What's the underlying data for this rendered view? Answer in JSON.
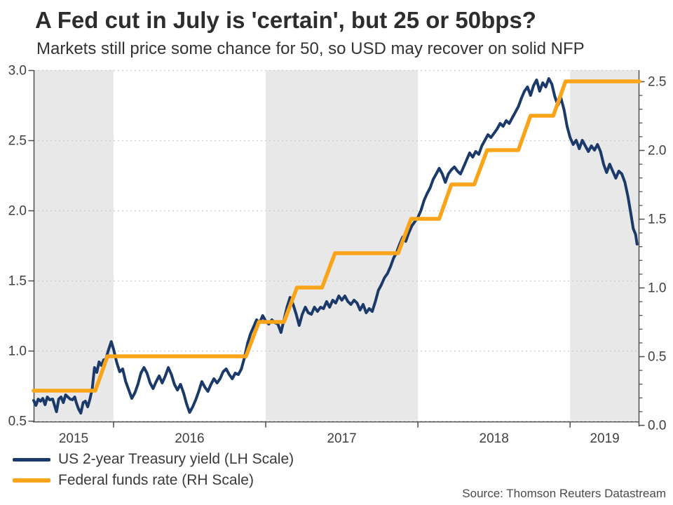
{
  "header": {
    "title": "A Fed cut in July is 'certain', but 25 or 50bps?",
    "subtitle": "Markets still price some chance for 50, so USD may recover on solid NFP"
  },
  "legend": [
    {
      "label": "US 2-year Treasury yield (LH Scale)",
      "color": "#1b3a69"
    },
    {
      "label": "Federal funds rate (RH Scale)",
      "color": "#faa41a"
    }
  ],
  "source_note": "Source: Thomson Reuters Datastream",
  "chart_data": {
    "type": "line",
    "title": "A Fed cut in July is 'certain', but 25 or 50bps?",
    "subtitle": "Markets still price some chance for 50, so USD may recover on solid NFP",
    "grid": "dotted horizontal",
    "legend_position": "bottom-left",
    "x_axis": {
      "range_decimal_years": [
        2015.475,
        2019.455
      ],
      "tick_years": [
        2016,
        2017,
        2018,
        2019
      ],
      "year_labels": [
        "2015",
        "2016",
        "2017",
        "2018",
        "2019"
      ],
      "shaded_years": [
        2015,
        2017,
        2019
      ],
      "band_color": "#e8e8e8"
    },
    "left_axis": {
      "range": [
        0.5,
        3.0
      ],
      "tick_values": [
        3.0,
        2.5,
        2.0,
        1.5,
        1.0,
        0.5
      ],
      "tick_labels": [
        "3.0",
        "2.5",
        "2.0",
        "1.5",
        "1.0",
        "0.5"
      ]
    },
    "right_axis": {
      "range": [
        0.0,
        2.5
      ],
      "tick_values": [
        2.5,
        2.0,
        1.5,
        1.0,
        0.5,
        0.0
      ],
      "tick_labels": [
        "2.5",
        "2.0",
        "1.5",
        "1.0",
        "0.5",
        "0.0"
      ],
      "minor_tick_step": 0.1
    },
    "series": [
      {
        "name": "US 2-year Treasury yield (LH Scale)",
        "axis": "left",
        "color": "#1b3a69",
        "width": 4,
        "points": [
          [
            2015.475,
            0.645
          ],
          [
            2015.49,
            0.61
          ],
          [
            2015.505,
            0.655
          ],
          [
            2015.52,
            0.64
          ],
          [
            2015.535,
            0.66
          ],
          [
            2015.55,
            0.615
          ],
          [
            2015.565,
            0.67
          ],
          [
            2015.58,
            0.65
          ],
          [
            2015.6,
            0.655
          ],
          [
            2015.615,
            0.6
          ],
          [
            2015.625,
            0.565
          ],
          [
            2015.64,
            0.655
          ],
          [
            2015.655,
            0.67
          ],
          [
            2015.67,
            0.63
          ],
          [
            2015.685,
            0.685
          ],
          [
            2015.7,
            0.67
          ],
          [
            2015.715,
            0.655
          ],
          [
            2015.73,
            0.65
          ],
          [
            2015.745,
            0.67
          ],
          [
            2015.755,
            0.63
          ],
          [
            2015.77,
            0.585
          ],
          [
            2015.785,
            0.555
          ],
          [
            2015.8,
            0.63
          ],
          [
            2015.815,
            0.64
          ],
          [
            2015.83,
            0.6
          ],
          [
            2015.845,
            0.655
          ],
          [
            2015.86,
            0.73
          ],
          [
            2015.875,
            0.88
          ],
          [
            2015.89,
            0.845
          ],
          [
            2015.905,
            0.92
          ],
          [
            2015.92,
            0.895
          ],
          [
            2015.935,
            0.935
          ],
          [
            2015.95,
            0.94
          ],
          [
            2015.965,
            1.0
          ],
          [
            2015.985,
            1.065
          ],
          [
            2016.0,
            1.01
          ],
          [
            2016.02,
            0.92
          ],
          [
            2016.04,
            0.85
          ],
          [
            2016.06,
            0.87
          ],
          [
            2016.08,
            0.78
          ],
          [
            2016.1,
            0.72
          ],
          [
            2016.12,
            0.66
          ],
          [
            2016.14,
            0.7
          ],
          [
            2016.16,
            0.76
          ],
          [
            2016.18,
            0.84
          ],
          [
            2016.2,
            0.88
          ],
          [
            2016.22,
            0.84
          ],
          [
            2016.24,
            0.77
          ],
          [
            2016.26,
            0.73
          ],
          [
            2016.28,
            0.78
          ],
          [
            2016.3,
            0.82
          ],
          [
            2016.32,
            0.77
          ],
          [
            2016.34,
            0.82
          ],
          [
            2016.36,
            0.88
          ],
          [
            2016.38,
            0.83
          ],
          [
            2016.4,
            0.76
          ],
          [
            2016.42,
            0.72
          ],
          [
            2016.44,
            0.76
          ],
          [
            2016.46,
            0.7
          ],
          [
            2016.48,
            0.62
          ],
          [
            2016.5,
            0.56
          ],
          [
            2016.52,
            0.6
          ],
          [
            2016.54,
            0.65
          ],
          [
            2016.56,
            0.71
          ],
          [
            2016.58,
            0.78
          ],
          [
            2016.6,
            0.74
          ],
          [
            2016.62,
            0.71
          ],
          [
            2016.64,
            0.76
          ],
          [
            2016.66,
            0.8
          ],
          [
            2016.68,
            0.77
          ],
          [
            2016.7,
            0.8
          ],
          [
            2016.72,
            0.85
          ],
          [
            2016.74,
            0.87
          ],
          [
            2016.76,
            0.83
          ],
          [
            2016.78,
            0.8
          ],
          [
            2016.8,
            0.84
          ],
          [
            2016.82,
            0.83
          ],
          [
            2016.84,
            0.87
          ],
          [
            2016.86,
            0.95
          ],
          [
            2016.88,
            1.05
          ],
          [
            2016.9,
            1.12
          ],
          [
            2016.92,
            1.17
          ],
          [
            2016.94,
            1.22
          ],
          [
            2016.96,
            1.2
          ],
          [
            2016.98,
            1.25
          ],
          [
            2017.0,
            1.21
          ],
          [
            2017.02,
            1.19
          ],
          [
            2017.04,
            1.22
          ],
          [
            2017.06,
            1.2
          ],
          [
            2017.08,
            1.19
          ],
          [
            2017.1,
            1.13
          ],
          [
            2017.12,
            1.22
          ],
          [
            2017.14,
            1.31
          ],
          [
            2017.16,
            1.38
          ],
          [
            2017.18,
            1.33
          ],
          [
            2017.2,
            1.26
          ],
          [
            2017.22,
            1.18
          ],
          [
            2017.24,
            1.26
          ],
          [
            2017.26,
            1.31
          ],
          [
            2017.28,
            1.27
          ],
          [
            2017.3,
            1.26
          ],
          [
            2017.32,
            1.31
          ],
          [
            2017.34,
            1.28
          ],
          [
            2017.36,
            1.31
          ],
          [
            2017.38,
            1.3
          ],
          [
            2017.4,
            1.35
          ],
          [
            2017.42,
            1.31
          ],
          [
            2017.44,
            1.36
          ],
          [
            2017.46,
            1.34
          ],
          [
            2017.48,
            1.39
          ],
          [
            2017.5,
            1.36
          ],
          [
            2017.52,
            1.39
          ],
          [
            2017.54,
            1.35
          ],
          [
            2017.56,
            1.33
          ],
          [
            2017.58,
            1.36
          ],
          [
            2017.6,
            1.34
          ],
          [
            2017.62,
            1.29
          ],
          [
            2017.64,
            1.33
          ],
          [
            2017.66,
            1.27
          ],
          [
            2017.68,
            1.3
          ],
          [
            2017.7,
            1.28
          ],
          [
            2017.72,
            1.35
          ],
          [
            2017.74,
            1.43
          ],
          [
            2017.76,
            1.47
          ],
          [
            2017.78,
            1.52
          ],
          [
            2017.8,
            1.55
          ],
          [
            2017.82,
            1.6
          ],
          [
            2017.84,
            1.66
          ],
          [
            2017.86,
            1.7
          ],
          [
            2017.88,
            1.76
          ],
          [
            2017.9,
            1.81
          ],
          [
            2017.92,
            1.78
          ],
          [
            2017.94,
            1.84
          ],
          [
            2017.96,
            1.89
          ],
          [
            2017.98,
            1.92
          ],
          [
            2018.0,
            1.95
          ],
          [
            2018.02,
            2.0
          ],
          [
            2018.04,
            2.07
          ],
          [
            2018.06,
            2.12
          ],
          [
            2018.08,
            2.16
          ],
          [
            2018.1,
            2.22
          ],
          [
            2018.12,
            2.26
          ],
          [
            2018.14,
            2.3
          ],
          [
            2018.16,
            2.26
          ],
          [
            2018.18,
            2.2
          ],
          [
            2018.2,
            2.26
          ],
          [
            2018.22,
            2.29
          ],
          [
            2018.24,
            2.31
          ],
          [
            2018.26,
            2.28
          ],
          [
            2018.28,
            2.26
          ],
          [
            2018.3,
            2.31
          ],
          [
            2018.32,
            2.36
          ],
          [
            2018.34,
            2.41
          ],
          [
            2018.36,
            2.38
          ],
          [
            2018.38,
            2.42
          ],
          [
            2018.4,
            2.4
          ],
          [
            2018.42,
            2.46
          ],
          [
            2018.44,
            2.5
          ],
          [
            2018.46,
            2.54
          ],
          [
            2018.48,
            2.52
          ],
          [
            2018.5,
            2.55
          ],
          [
            2018.52,
            2.58
          ],
          [
            2018.54,
            2.62
          ],
          [
            2018.56,
            2.6
          ],
          [
            2018.58,
            2.64
          ],
          [
            2018.6,
            2.62
          ],
          [
            2018.62,
            2.66
          ],
          [
            2018.64,
            2.7
          ],
          [
            2018.66,
            2.74
          ],
          [
            2018.68,
            2.8
          ],
          [
            2018.7,
            2.85
          ],
          [
            2018.72,
            2.88
          ],
          [
            2018.74,
            2.82
          ],
          [
            2018.76,
            2.89
          ],
          [
            2018.78,
            2.93
          ],
          [
            2018.8,
            2.85
          ],
          [
            2018.82,
            2.91
          ],
          [
            2018.84,
            2.88
          ],
          [
            2018.86,
            2.94
          ],
          [
            2018.88,
            2.9
          ],
          [
            2018.9,
            2.81
          ],
          [
            2018.92,
            2.75
          ],
          [
            2018.94,
            2.8
          ],
          [
            2018.96,
            2.72
          ],
          [
            2018.98,
            2.6
          ],
          [
            2019.0,
            2.52
          ],
          [
            2019.02,
            2.47
          ],
          [
            2019.04,
            2.5
          ],
          [
            2019.06,
            2.44
          ],
          [
            2019.08,
            2.5
          ],
          [
            2019.1,
            2.46
          ],
          [
            2019.12,
            2.42
          ],
          [
            2019.14,
            2.46
          ],
          [
            2019.16,
            2.43
          ],
          [
            2019.18,
            2.47
          ],
          [
            2019.2,
            2.42
          ],
          [
            2019.22,
            2.33
          ],
          [
            2019.24,
            2.27
          ],
          [
            2019.26,
            2.33
          ],
          [
            2019.28,
            2.28
          ],
          [
            2019.3,
            2.23
          ],
          [
            2019.32,
            2.28
          ],
          [
            2019.34,
            2.26
          ],
          [
            2019.36,
            2.2
          ],
          [
            2019.38,
            2.1
          ],
          [
            2019.4,
            1.97
          ],
          [
            2019.415,
            1.87
          ],
          [
            2019.43,
            1.83
          ],
          [
            2019.44,
            1.76
          ]
        ]
      },
      {
        "name": "Federal funds rate (RH Scale)",
        "axis": "right",
        "color": "#faa41a",
        "width": 5.5,
        "points": [
          [
            2015.475,
            0.25
          ],
          [
            2015.88,
            0.25
          ],
          [
            2015.96,
            0.5
          ],
          [
            2016.87,
            0.5
          ],
          [
            2016.955,
            0.75
          ],
          [
            2017.12,
            0.75
          ],
          [
            2017.205,
            1.0
          ],
          [
            2017.37,
            1.0
          ],
          [
            2017.455,
            1.25
          ],
          [
            2017.87,
            1.25
          ],
          [
            2017.955,
            1.5
          ],
          [
            2018.14,
            1.5
          ],
          [
            2018.22,
            1.75
          ],
          [
            2018.37,
            1.75
          ],
          [
            2018.455,
            2.0
          ],
          [
            2018.66,
            2.0
          ],
          [
            2018.74,
            2.25
          ],
          [
            2018.89,
            2.25
          ],
          [
            2018.97,
            2.5
          ],
          [
            2019.455,
            2.5
          ]
        ]
      }
    ]
  }
}
